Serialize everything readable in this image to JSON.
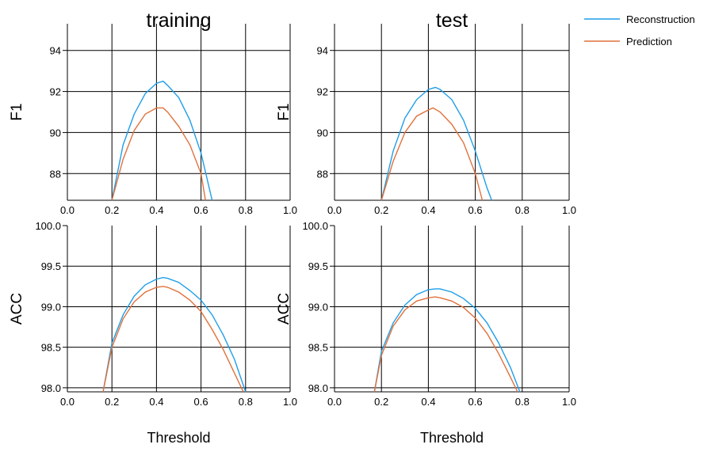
{
  "legend": {
    "placement": "top-right",
    "entries": [
      {
        "label": "Reconstruction",
        "color": "#1f9ee8"
      },
      {
        "label": "Prediction",
        "color": "#e0713b"
      }
    ]
  },
  "chart_data": [
    {
      "type": "line",
      "title": "training",
      "xlabel": "",
      "ylabel": "F1",
      "xlim": [
        0.0,
        1.0
      ],
      "ylim": [
        86.7,
        95.3
      ],
      "xticks": [
        "0.0",
        "0.2",
        "0.4",
        "0.6",
        "0.8",
        "1.0"
      ],
      "yticks": [
        "88",
        "90",
        "92",
        "94"
      ],
      "grid": true,
      "series": [
        {
          "name": "Reconstruction",
          "color": "#1f9ee8",
          "x": [
            0.2,
            0.25,
            0.3,
            0.35,
            0.4,
            0.43,
            0.45,
            0.5,
            0.55,
            0.6,
            0.65
          ],
          "y": [
            86.7,
            89.4,
            90.9,
            91.9,
            92.4,
            92.5,
            92.3,
            91.7,
            90.6,
            89.0,
            86.7
          ]
        },
        {
          "name": "Prediction",
          "color": "#e0713b",
          "x": [
            0.2,
            0.25,
            0.3,
            0.35,
            0.4,
            0.43,
            0.45,
            0.5,
            0.55,
            0.6,
            0.62
          ],
          "y": [
            86.7,
            88.7,
            90.1,
            90.9,
            91.2,
            91.2,
            91.0,
            90.3,
            89.4,
            88.0,
            86.7
          ]
        }
      ]
    },
    {
      "type": "line",
      "title": "test",
      "xlabel": "",
      "ylabel": "F1",
      "xlim": [
        0.0,
        1.0
      ],
      "ylim": [
        86.7,
        95.3
      ],
      "xticks": [
        "0.0",
        "0.2",
        "0.4",
        "0.6",
        "0.8",
        "1.0"
      ],
      "yticks": [
        "88",
        "90",
        "92",
        "94"
      ],
      "grid": true,
      "series": [
        {
          "name": "Reconstruction",
          "color": "#1f9ee8",
          "x": [
            0.2,
            0.25,
            0.3,
            0.35,
            0.4,
            0.43,
            0.45,
            0.5,
            0.55,
            0.6,
            0.65,
            0.67
          ],
          "y": [
            86.7,
            89.1,
            90.7,
            91.6,
            92.1,
            92.2,
            92.1,
            91.6,
            90.6,
            89.1,
            87.3,
            86.7
          ]
        },
        {
          "name": "Prediction",
          "color": "#e0713b",
          "x": [
            0.2,
            0.25,
            0.3,
            0.35,
            0.4,
            0.42,
            0.45,
            0.5,
            0.55,
            0.6,
            0.63
          ],
          "y": [
            86.7,
            88.6,
            90.0,
            90.8,
            91.1,
            91.2,
            91.0,
            90.4,
            89.5,
            88.0,
            86.7
          ]
        }
      ]
    },
    {
      "type": "line",
      "title": "",
      "xlabel": "Threshold",
      "ylabel": "ACC",
      "xlim": [
        0.0,
        1.0
      ],
      "ylim": [
        97.95,
        100.0
      ],
      "xticks": [
        "0.0",
        "0.2",
        "0.4",
        "0.6",
        "0.8",
        "1.0"
      ],
      "yticks": [
        "98.0",
        "98.5",
        "99.0",
        "99.5",
        "100.0"
      ],
      "grid": true,
      "series": [
        {
          "name": "Reconstruction",
          "color": "#1f9ee8",
          "x": [
            0.16,
            0.2,
            0.25,
            0.3,
            0.35,
            0.4,
            0.43,
            0.45,
            0.5,
            0.55,
            0.6,
            0.65,
            0.7,
            0.75,
            0.8
          ],
          "y": [
            97.95,
            98.55,
            98.9,
            99.13,
            99.27,
            99.34,
            99.36,
            99.35,
            99.3,
            99.2,
            99.08,
            98.9,
            98.65,
            98.35,
            97.95
          ]
        },
        {
          "name": "Prediction",
          "color": "#e0713b",
          "x": [
            0.16,
            0.2,
            0.25,
            0.3,
            0.35,
            0.4,
            0.43,
            0.45,
            0.5,
            0.55,
            0.6,
            0.65,
            0.7,
            0.75,
            0.79
          ],
          "y": [
            97.95,
            98.5,
            98.85,
            99.06,
            99.18,
            99.24,
            99.25,
            99.24,
            99.18,
            99.08,
            98.94,
            98.72,
            98.47,
            98.18,
            97.95
          ]
        }
      ]
    },
    {
      "type": "line",
      "title": "",
      "xlabel": "Threshold",
      "ylabel": "ACC",
      "xlim": [
        0.0,
        1.0
      ],
      "ylim": [
        97.95,
        100.0
      ],
      "xticks": [
        "0.0",
        "0.2",
        "0.4",
        "0.6",
        "0.8",
        "1.0"
      ],
      "yticks": [
        "98.0",
        "98.5",
        "99.0",
        "99.5",
        "100.0"
      ],
      "grid": true,
      "series": [
        {
          "name": "Reconstruction",
          "color": "#1f9ee8",
          "x": [
            0.17,
            0.2,
            0.25,
            0.3,
            0.35,
            0.4,
            0.43,
            0.45,
            0.5,
            0.55,
            0.6,
            0.65,
            0.7,
            0.75,
            0.79
          ],
          "y": [
            97.95,
            98.45,
            98.8,
            99.02,
            99.15,
            99.21,
            99.22,
            99.22,
            99.18,
            99.1,
            98.98,
            98.8,
            98.55,
            98.25,
            97.95
          ]
        },
        {
          "name": "Prediction",
          "color": "#e0713b",
          "x": [
            0.17,
            0.2,
            0.25,
            0.3,
            0.35,
            0.4,
            0.43,
            0.45,
            0.5,
            0.55,
            0.6,
            0.65,
            0.7,
            0.75,
            0.78
          ],
          "y": [
            97.95,
            98.4,
            98.76,
            98.96,
            99.07,
            99.11,
            99.12,
            99.11,
            99.07,
            98.99,
            98.86,
            98.67,
            98.42,
            98.13,
            97.95
          ]
        }
      ]
    }
  ]
}
